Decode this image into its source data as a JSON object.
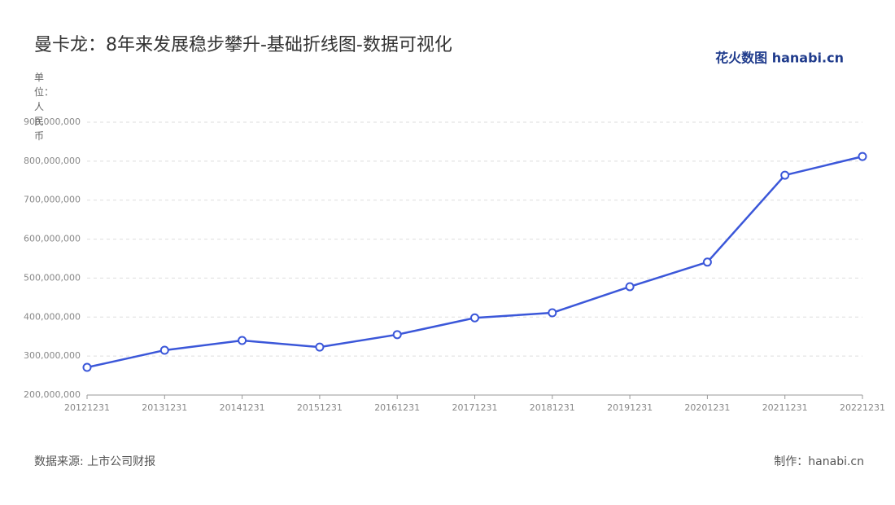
{
  "chart_data": {
    "type": "line",
    "title": "曼卡龙：8年来发展稳步攀升-基础折线图-数据可视化",
    "logo": "花火数图 hanabi.cn",
    "y_label": "单位：人民币",
    "source": "数据来源: 上市公司财报",
    "credit": "制作：hanabi.cn",
    "categories": [
      "20121231",
      "20131231",
      "20141231",
      "20151231",
      "20161231",
      "20171231",
      "20181231",
      "20191231",
      "20201231",
      "20211231",
      "20221231"
    ],
    "values": [
      271000000,
      315000000,
      340000000,
      323000000,
      355000000,
      398000000,
      411000000,
      478000000,
      541000000,
      764000000,
      812000000
    ],
    "color": "#3b57d9",
    "ylim": [
      200000000,
      900000000
    ],
    "yticks": [
      {
        "value": 200000000,
        "label": "200,000,000"
      },
      {
        "value": 300000000,
        "label": "300,000,000"
      },
      {
        "value": 400000000,
        "label": "400,000,000"
      },
      {
        "value": 500000000,
        "label": "500,000,000"
      },
      {
        "value": 600000000,
        "label": "600,000,000"
      },
      {
        "value": 700000000,
        "label": "700,000,000"
      },
      {
        "value": 800000000,
        "label": "800,000,000"
      },
      {
        "value": 900000000,
        "label": "900,000,000"
      }
    ],
    "grid": true
  }
}
